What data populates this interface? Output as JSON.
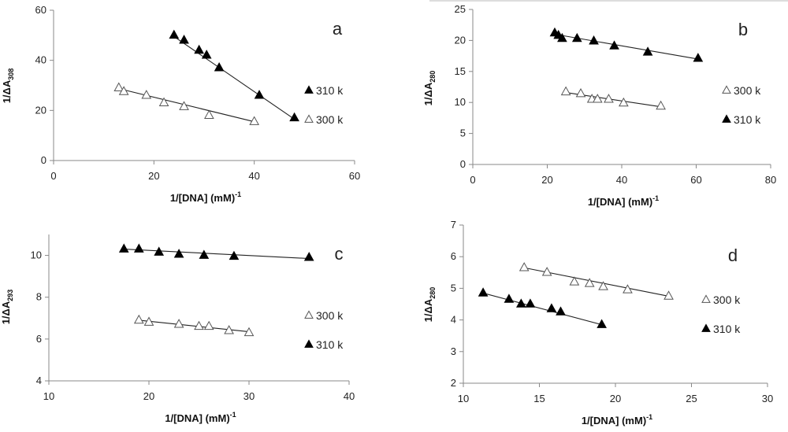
{
  "chart_data": [
    {
      "panel": "a",
      "type": "scatter",
      "xlabel": "1/[DNA] (mM)-1",
      "ylabel": "1/ΔA308",
      "xlim": [
        0,
        60
      ],
      "xticks": [
        0,
        20,
        40,
        60
      ],
      "ylim": [
        0,
        60
      ],
      "yticks": [
        0,
        20,
        40,
        60
      ],
      "series": [
        {
          "name": "310 k",
          "marker": "filled-triangle",
          "x": [
            24,
            26,
            29,
            30.5,
            33,
            41,
            48
          ],
          "y": [
            50,
            48,
            44,
            42,
            37,
            26,
            17
          ],
          "fit": [
            [
              24,
              49.5
            ],
            [
              48,
              16.5
            ]
          ]
        },
        {
          "name": "300 k",
          "marker": "open-triangle",
          "x": [
            13,
            14,
            18.5,
            22,
            26,
            31,
            40
          ],
          "y": [
            29,
            27.5,
            26,
            23,
            21.5,
            18,
            15.5
          ],
          "fit": [
            [
              13,
              28.7
            ],
            [
              40,
              15.5
            ]
          ]
        }
      ],
      "legend_order": [
        0,
        1
      ]
    },
    {
      "panel": "b",
      "type": "scatter",
      "xlabel": "1/[DNA] (mM)-1",
      "ylabel": "1/ΔA280",
      "xlim": [
        0,
        80
      ],
      "xticks": [
        0,
        20,
        40,
        60,
        80
      ],
      "ylim": [
        0,
        25
      ],
      "yticks": [
        0,
        5,
        10,
        15,
        20,
        25
      ],
      "series": [
        {
          "name": "300 k",
          "marker": "open-triangle",
          "x": [
            25,
            29,
            32,
            33.5,
            36.5,
            40.5,
            50.5
          ],
          "y": [
            11.7,
            11.4,
            10.5,
            10.5,
            10.5,
            9.9,
            9.4
          ],
          "fit": [
            [
              25,
              11.6
            ],
            [
              50.5,
              9.3
            ]
          ]
        },
        {
          "name": "310 k",
          "marker": "filled-triangle",
          "x": [
            22,
            23,
            24,
            28,
            32.5,
            38,
            47,
            60.5
          ],
          "y": [
            21.2,
            20.8,
            20.3,
            20.3,
            19.9,
            19.1,
            18.1,
            17.1
          ],
          "fit": [
            [
              22,
              21.0
            ],
            [
              60.5,
              17.0
            ]
          ]
        }
      ],
      "legend_order": [
        0,
        1
      ]
    },
    {
      "panel": "c",
      "type": "scatter",
      "xlabel": "1/[DNA] (mM)-1",
      "ylabel": "1/ΔA293",
      "xlim": [
        10,
        40
      ],
      "xticks": [
        10,
        20,
        30,
        40
      ],
      "ylim": [
        4,
        11
      ],
      "yticks": [
        4,
        6,
        8,
        10
      ],
      "series": [
        {
          "name": "300 k",
          "marker": "open-triangle",
          "x": [
            19,
            20,
            23,
            25,
            26,
            28,
            30
          ],
          "y": [
            6.9,
            6.8,
            6.7,
            6.6,
            6.6,
            6.4,
            6.3
          ],
          "fit": [
            [
              19,
              6.9
            ],
            [
              30,
              6.35
            ]
          ]
        },
        {
          "name": "310 k",
          "marker": "filled-triangle",
          "x": [
            17.5,
            19,
            21,
            23,
            25.5,
            28.5,
            36
          ],
          "y": [
            10.3,
            10.3,
            10.15,
            10.05,
            10.0,
            9.95,
            9.9
          ],
          "fit": [
            [
              17.5,
              10.3
            ],
            [
              36,
              9.85
            ]
          ]
        }
      ],
      "legend_order": [
        0,
        1
      ]
    },
    {
      "panel": "d",
      "type": "scatter",
      "xlabel": "1/[DNA] (mM)-1",
      "ylabel": "1/ΔA280",
      "xlim": [
        10,
        30
      ],
      "xticks": [
        10,
        15,
        20,
        25,
        30
      ],
      "ylim": [
        2,
        7
      ],
      "yticks": [
        2,
        3,
        4,
        5,
        6,
        7
      ],
      "series": [
        {
          "name": "300 k",
          "marker": "open-triangle",
          "x": [
            14,
            15.5,
            17.3,
            18.3,
            19.2,
            20.8,
            23.5
          ],
          "y": [
            5.65,
            5.5,
            5.2,
            5.15,
            5.05,
            4.95,
            4.75
          ],
          "fit": [
            [
              14,
              5.65
            ],
            [
              23.5,
              4.75
            ]
          ]
        },
        {
          "name": "310 k",
          "marker": "filled-triangle",
          "x": [
            11.3,
            13,
            13.8,
            14.4,
            15.8,
            16.4,
            19.1
          ],
          "y": [
            4.85,
            4.65,
            4.5,
            4.5,
            4.35,
            4.25,
            3.85
          ],
          "fit": [
            [
              11.3,
              4.85
            ],
            [
              19.1,
              3.85
            ]
          ]
        }
      ],
      "legend_order": [
        0,
        1
      ]
    }
  ]
}
